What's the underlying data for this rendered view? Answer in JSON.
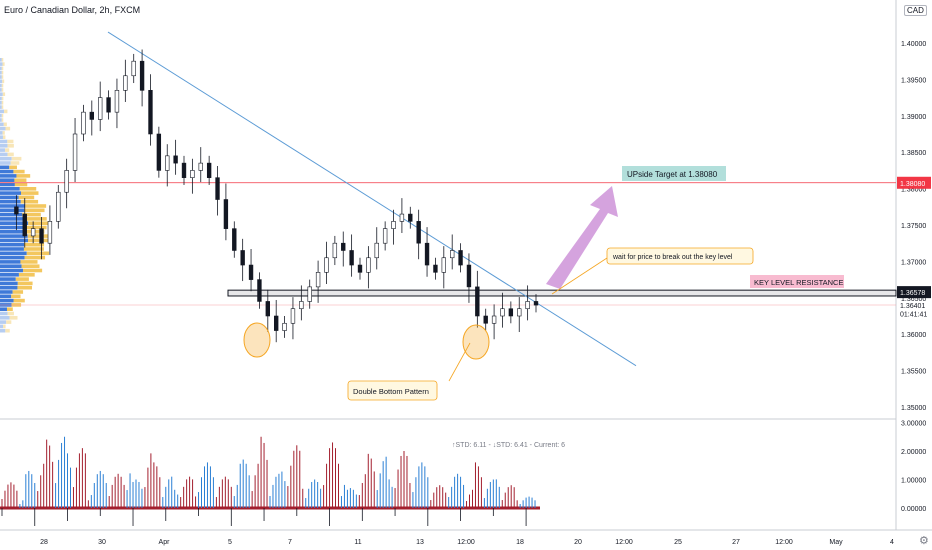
{
  "header": {
    "symbol_title": "Euro / Canadian Dollar, 2h, FXCM",
    "currency": "CAD"
  },
  "icons": {
    "settings": "gear-icon"
  },
  "colors": {
    "up_candle": "#131722",
    "down_candle": "#131722",
    "trendline": "#5b9bd5",
    "target_line": "#f23645",
    "resistance_box": "#131722",
    "arrow": "#ce93d8",
    "highlight_circle": "#f5a623",
    "volume_red": "#a31f2e",
    "volume_blue": "#2a7fd4"
  },
  "chart_data": [
    {
      "type": "candlestick",
      "title": "Euro / Canadian Dollar, 2h, FXCM",
      "y_ticks": [
        "1.40000",
        "1.39500",
        "1.39000",
        "1.38500",
        "1.38000",
        "1.37500",
        "1.37000",
        "1.36500",
        "1.36000",
        "1.35500",
        "1.35000"
      ],
      "ylim": [
        1.3475,
        1.4055
      ],
      "x_ticks": [
        "28",
        "30",
        "Apr",
        "5",
        "7",
        "11",
        "13",
        "12:00",
        "18",
        "20",
        "12:00",
        "25",
        "27",
        "12:00",
        "May",
        "4"
      ],
      "price_labels": [
        {
          "text": "1.38080",
          "value": 1.3808,
          "kind": "red"
        },
        {
          "text": "1.36578",
          "value": 1.36578,
          "kind": "dark"
        },
        {
          "text": "1.36401",
          "value": 1.36401,
          "kind": "plain"
        },
        {
          "text": "01:41:41",
          "value": 1.36285,
          "kind": "plain"
        }
      ],
      "levels": [
        {
          "name": "target",
          "value": 1.3808
        },
        {
          "name": "current",
          "value": 1.36401
        }
      ],
      "resistance_zone": [
        1.36525,
        1.36605
      ],
      "trendline": [
        [
          1.4015,
          0
        ],
        [
          1.35567,
          1
        ]
      ],
      "annotations": {
        "target": "UPside Target at 1.38080",
        "wait": "wait for price to break out the key level",
        "key_level": "KEY LEVEL RESISTANCE",
        "pattern": "Double Bottom Pattern"
      },
      "price_path": [
        1.3775,
        1.3765,
        1.3735,
        1.3745,
        1.3725,
        1.3755,
        1.3795,
        1.3825,
        1.3875,
        1.3905,
        1.3895,
        1.3925,
        1.3905,
        1.3935,
        1.3955,
        1.3975,
        1.3935,
        1.3875,
        1.3825,
        1.3845,
        1.3835,
        1.3815,
        1.3825,
        1.3835,
        1.3815,
        1.3785,
        1.3745,
        1.3715,
        1.3695,
        1.3675,
        1.3645,
        1.3625,
        1.3605,
        1.3615,
        1.3635,
        1.3645,
        1.3665,
        1.3685,
        1.3705,
        1.3725,
        1.3715,
        1.3695,
        1.3685,
        1.3705,
        1.3725,
        1.3745,
        1.3755,
        1.3765,
        1.3755,
        1.3725,
        1.3695,
        1.3685,
        1.3705,
        1.3715,
        1.3695,
        1.3665,
        1.3625,
        1.3615,
        1.3625,
        1.3635,
        1.3625,
        1.3635,
        1.3645,
        1.364
      ]
    },
    {
      "type": "bar",
      "name": "volume oscillator",
      "legend_text": "↑STD: 6.11 - ↓STD: 6.41 - Current: 6",
      "y_ticks": [
        "3.00000",
        "2.00000",
        "1.00000",
        "0.00000"
      ],
      "ylim": [
        -0.95,
        3.05
      ],
      "red_peaks": [
        0.9,
        1.7,
        2.4,
        2.1,
        0.4,
        1.2,
        2.1,
        1.6,
        1.1,
        0.6,
        1.1,
        1.7,
        2.5,
        2.2,
        1.0,
        2.3,
        1.3,
        1.9,
        2.0,
        1.3,
        0.8,
        0.7,
        1.6,
        0.8,
        0.4
      ],
      "blue_peaks": [
        0.4,
        1.3,
        2.5,
        2.1,
        1.3,
        1.8,
        1.0,
        1.1,
        0.7,
        1.6,
        1.2,
        1.7,
        1.2,
        1.4,
        1.0,
        1.2,
        0.7,
        1.8,
        1.1,
        1.6,
        1.1,
        1.2,
        1.0,
        1.1,
        0.4
      ]
    }
  ]
}
